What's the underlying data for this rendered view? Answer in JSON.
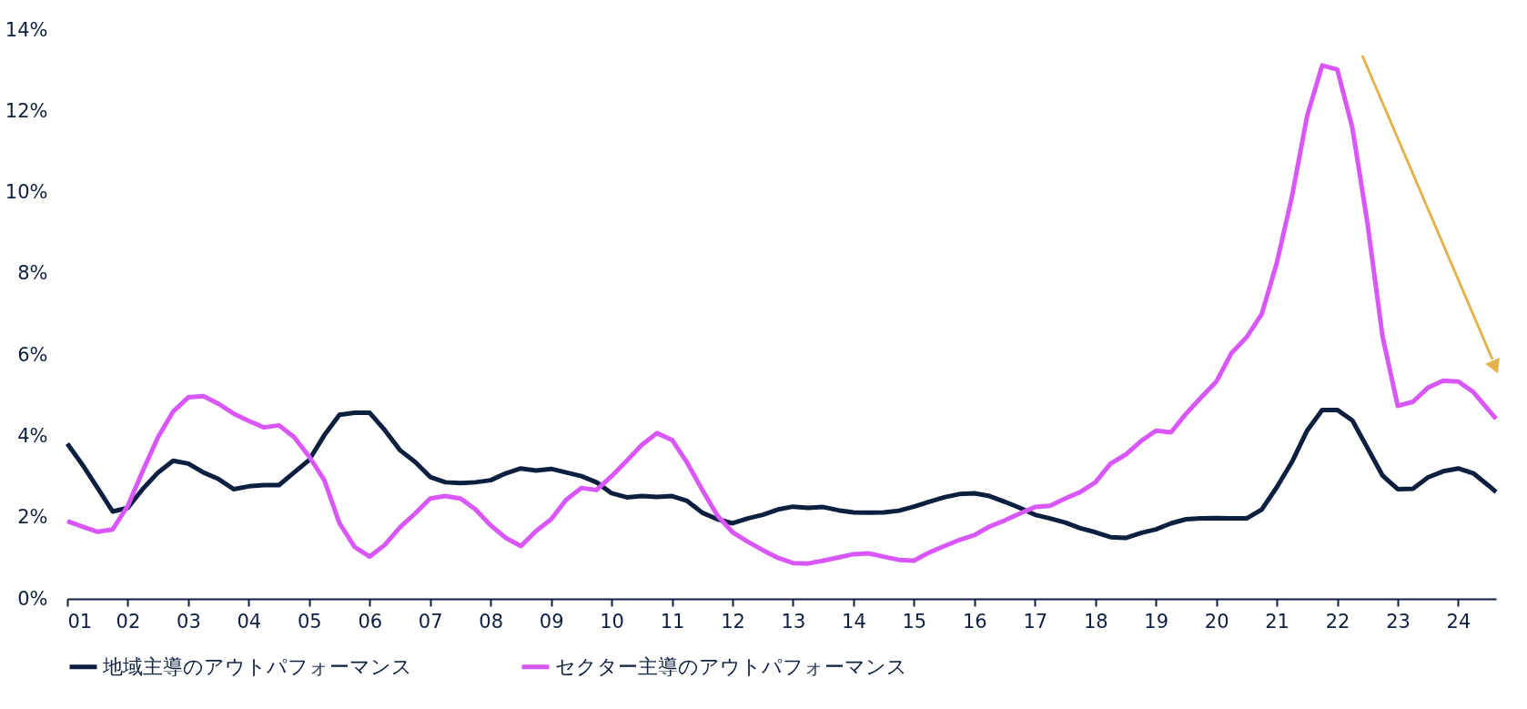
{
  "chart_data": {
    "type": "line",
    "x": [
      2001,
      2001.25,
      2001.5,
      2001.75,
      2002,
      2002.25,
      2002.5,
      2002.75,
      2003,
      2003.25,
      2003.5,
      2003.75,
      2004,
      2004.25,
      2004.5,
      2004.75,
      2005,
      2005.25,
      2005.5,
      2005.75,
      2006,
      2006.25,
      2006.5,
      2006.75,
      2007,
      2007.25,
      2007.5,
      2007.75,
      2008,
      2008.25,
      2008.5,
      2008.75,
      2009,
      2009.25,
      2009.5,
      2009.75,
      2010,
      2010.25,
      2010.5,
      2010.75,
      2011,
      2011.25,
      2011.5,
      2011.75,
      2012,
      2012.25,
      2012.5,
      2012.75,
      2013,
      2013.25,
      2013.5,
      2013.75,
      2014,
      2014.25,
      2014.5,
      2014.75,
      2015,
      2015.25,
      2015.5,
      2015.75,
      2016,
      2016.25,
      2016.5,
      2016.75,
      2017,
      2017.25,
      2017.5,
      2017.75,
      2018,
      2018.25,
      2018.5,
      2018.75,
      2019,
      2019.25,
      2019.5,
      2019.75,
      2020,
      2020.25,
      2020.5,
      2020.75,
      2021,
      2021.25,
      2021.5,
      2021.75,
      2022,
      2022.25,
      2022.5,
      2022.75,
      2023,
      2023.25,
      2023.5,
      2023.75,
      2024,
      2024.25,
      2024.5,
      2024.625
    ],
    "series": [
      {
        "name": "地域主導のアウトパフォーマンス",
        "color": "#0d1f3f",
        "values": [
          3.82,
          3.3,
          2.73,
          2.15,
          2.24,
          2.71,
          3.11,
          3.4,
          3.33,
          3.11,
          2.95,
          2.7,
          2.77,
          2.8,
          2.8,
          3.11,
          3.42,
          4.03,
          4.53,
          4.58,
          4.58,
          4.15,
          3.66,
          3.37,
          3.0,
          2.87,
          2.85,
          2.87,
          2.92,
          3.09,
          3.21,
          3.16,
          3.2,
          3.11,
          3.02,
          2.87,
          2.6,
          2.5,
          2.53,
          2.51,
          2.53,
          2.41,
          2.12,
          1.96,
          1.86,
          1.98,
          2.07,
          2.2,
          2.27,
          2.24,
          2.26,
          2.18,
          2.13,
          2.12,
          2.13,
          2.17,
          2.27,
          2.39,
          2.5,
          2.58,
          2.6,
          2.53,
          2.39,
          2.24,
          2.07,
          1.98,
          1.88,
          1.74,
          1.64,
          1.52,
          1.5,
          1.62,
          1.71,
          1.86,
          1.96,
          1.98,
          1.99,
          1.98,
          1.98,
          2.2,
          2.75,
          3.37,
          4.14,
          4.65,
          4.65,
          4.39,
          3.71,
          3.03,
          2.7,
          2.71,
          2.99,
          3.14,
          3.21,
          3.09,
          2.79,
          2.63
        ]
      },
      {
        "name": "セクター主導のアウトパフォーマンス",
        "color": "#d957fa",
        "values": [
          1.91,
          1.78,
          1.65,
          1.71,
          2.29,
          3.16,
          3.98,
          4.61,
          4.96,
          4.99,
          4.8,
          4.56,
          4.38,
          4.22,
          4.27,
          3.98,
          3.5,
          2.92,
          1.86,
          1.28,
          1.04,
          1.33,
          1.76,
          2.1,
          2.47,
          2.53,
          2.47,
          2.2,
          1.81,
          1.5,
          1.3,
          1.67,
          1.96,
          2.44,
          2.73,
          2.68,
          3.02,
          3.4,
          3.79,
          4.08,
          3.91,
          3.35,
          2.68,
          2.05,
          1.64,
          1.41,
          1.2,
          1.01,
          0.88,
          0.87,
          0.94,
          1.02,
          1.1,
          1.12,
          1.04,
          0.96,
          0.94,
          1.14,
          1.3,
          1.45,
          1.57,
          1.78,
          1.93,
          2.1,
          2.26,
          2.29,
          2.47,
          2.63,
          2.87,
          3.33,
          3.55,
          3.88,
          4.14,
          4.1,
          4.56,
          4.96,
          5.35,
          6.05,
          6.44,
          7.01,
          8.27,
          9.9,
          11.88,
          13.13,
          13.03,
          11.59,
          9.23,
          6.44,
          4.75,
          4.85,
          5.2,
          5.37,
          5.35,
          5.09,
          4.65,
          4.43
        ]
      }
    ],
    "xlim": [
      2001,
      2024.625
    ],
    "xticks": [
      {
        "value": 2001,
        "label": "01"
      },
      {
        "value": 2002,
        "label": "02"
      },
      {
        "value": 2003,
        "label": "03"
      },
      {
        "value": 2004,
        "label": "04"
      },
      {
        "value": 2005,
        "label": "05"
      },
      {
        "value": 2006,
        "label": "06"
      },
      {
        "value": 2007,
        "label": "07"
      },
      {
        "value": 2008,
        "label": "08"
      },
      {
        "value": 2009,
        "label": "09"
      },
      {
        "value": 2010,
        "label": "10"
      },
      {
        "value": 2011,
        "label": "11"
      },
      {
        "value": 2012,
        "label": "12"
      },
      {
        "value": 2013,
        "label": "13"
      },
      {
        "value": 2014,
        "label": "14"
      },
      {
        "value": 2015,
        "label": "15"
      },
      {
        "value": 2016,
        "label": "16"
      },
      {
        "value": 2017,
        "label": "17"
      },
      {
        "value": 2018,
        "label": "18"
      },
      {
        "value": 2019,
        "label": "19"
      },
      {
        "value": 2020,
        "label": "20"
      },
      {
        "value": 2021,
        "label": "21"
      },
      {
        "value": 2022,
        "label": "22"
      },
      {
        "value": 2023,
        "label": "23"
      },
      {
        "value": 2024,
        "label": "24"
      }
    ],
    "ylim": [
      0,
      14
    ],
    "yticks": [
      {
        "value": 0,
        "label": "0%"
      },
      {
        "value": 2,
        "label": "2%"
      },
      {
        "value": 4,
        "label": "4%"
      },
      {
        "value": 6,
        "label": "6%"
      },
      {
        "value": 8,
        "label": "8%"
      },
      {
        "value": 10,
        "label": "10%"
      },
      {
        "value": 12,
        "label": "12%"
      },
      {
        "value": 14,
        "label": "14%"
      }
    ],
    "grid": false,
    "legend": "bottom",
    "marker": "none",
    "line_style": "solid"
  }
}
